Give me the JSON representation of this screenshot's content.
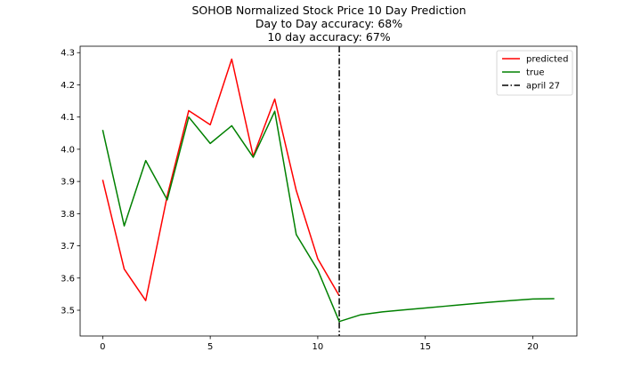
{
  "chart_data": {
    "type": "line",
    "title_lines": [
      "SOHOB Normalized Stock Price 10 Day Prediction",
      "Day to Day accuracy: 68%",
      "10 day accuracy: 67%"
    ],
    "xlim": [
      -1.05,
      22.05
    ],
    "ylim": [
      3.42,
      4.32
    ],
    "x_ticks": [
      0,
      5,
      10,
      15,
      20
    ],
    "y_ticks": [
      3.5,
      3.6,
      3.7,
      3.8,
      3.9,
      4.0,
      4.1,
      4.2,
      4.3
    ],
    "x_tick_labels": [
      "0",
      "5",
      "10",
      "15",
      "20"
    ],
    "y_tick_labels": [
      "3.5",
      "3.6",
      "3.7",
      "3.8",
      "3.9",
      "4.0",
      "4.1",
      "4.2",
      "4.3"
    ],
    "series": [
      {
        "name": "predicted",
        "color": "#ff0000",
        "x": [
          0,
          1,
          2,
          3,
          4,
          5,
          6,
          7,
          8,
          9,
          10,
          11
        ],
        "y": [
          3.905,
          3.628,
          3.53,
          3.855,
          4.12,
          4.076,
          4.28,
          3.978,
          4.156,
          3.872,
          3.66,
          3.545
        ]
      },
      {
        "name": "true",
        "color": "#008000",
        "x": [
          0,
          1,
          2,
          3,
          4,
          5,
          6,
          7,
          8,
          9,
          10,
          11,
          12,
          13,
          14,
          15,
          16,
          17,
          18,
          19,
          20,
          21
        ],
        "y": [
          4.06,
          3.762,
          3.965,
          3.843,
          4.1,
          4.018,
          4.073,
          3.975,
          4.118,
          3.735,
          3.625,
          3.465,
          3.486,
          3.495,
          3.501,
          3.507,
          3.513,
          3.519,
          3.525,
          3.53,
          3.535,
          3.536
        ]
      }
    ],
    "vline": {
      "name": "april 27",
      "x": 11,
      "color": "#000000",
      "style": "dashdot"
    },
    "legend": {
      "position": "upper right",
      "entries": [
        "predicted",
        "true",
        "april 27"
      ]
    },
    "grid": false
  }
}
